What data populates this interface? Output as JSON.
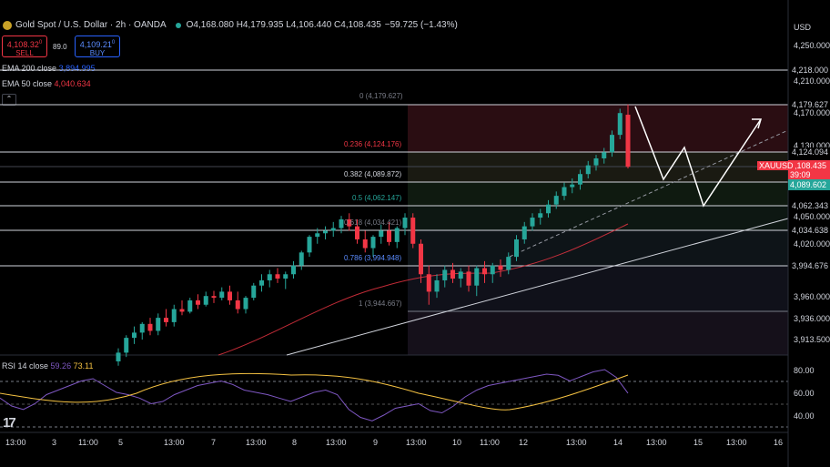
{
  "header": {
    "title": "Gold Spot / U.S. Dollar · 2h · OANDA",
    "o_label": "O",
    "o": "4,168.080",
    "h_label": "H",
    "h": "4,179.935",
    "l_label": "L",
    "l": "4,106.440",
    "c_label": "C",
    "c": "4,108.435",
    "change": "−59.725 (−1.43%)"
  },
  "trade": {
    "sell_price": "4,108.32",
    "sell_sup": "0",
    "sell_label": "SELL",
    "spread": "89.0",
    "buy_price": "4,109.21",
    "buy_sup": "0",
    "buy_label": "BUY"
  },
  "ema200": {
    "label": "EMA 200 close",
    "value": "3,894.995",
    "color": "#2962ff"
  },
  "ema50": {
    "label": "EMA 50 close",
    "value": "4,040.634",
    "color": "#f23645"
  },
  "currency": "USD",
  "price_axis": [
    "4,250.000",
    "4,218.000",
    "4,210.000",
    "4,179.627",
    "4,170.000",
    "4,124.094",
    "4,130.000",
    "4,089.602",
    "4,062.343",
    "4,050.000",
    "4,034.638",
    "4,020.000",
    "3,994.676",
    "3,960.000",
    "3,936.000",
    "3,913.500"
  ],
  "symbol_tag": {
    "symbol": "XAUUSD",
    "price": "4,108.435",
    "countdown": "39:09",
    "color": "#f23645"
  },
  "level_tag": {
    "value": "4,089.602",
    "color": "#26a69a"
  },
  "fib_levels": [
    {
      "ratio": "0",
      "price": "4,179.627",
      "text": "0 (4,179.627)",
      "color": "#787b86"
    },
    {
      "ratio": "0.236",
      "price": "4,124.176",
      "text": "0.236 (4,124.176)",
      "color": "#f23645"
    },
    {
      "ratio": "0.382",
      "price": "4,089.872",
      "text": "0.382 (4,089.872)",
      "color": "#d1d4dc"
    },
    {
      "ratio": "0.5",
      "price": "4,062.147",
      "text": "0.5 (4,062.147)",
      "color": "#26a69a"
    },
    {
      "ratio": "0.618",
      "price": "4,034.421",
      "text": "0.618 (4,034.421)",
      "color": "#787b86"
    },
    {
      "ratio": "0.786",
      "price": "3,994.948",
      "text": "0.786 (3,994.948)",
      "color": "#5b8cff"
    },
    {
      "ratio": "1",
      "price": "3,944.667",
      "text": "1 (3,944.667)",
      "color": "#787b86"
    }
  ],
  "rsi": {
    "label": "RSI 14 close",
    "value1": "59.26",
    "value2": "73.11",
    "axis": [
      "80.00",
      "60.00",
      "40.00"
    ]
  },
  "time_axis": [
    "13:00",
    "3",
    "11:00",
    "5",
    "13:00",
    "7",
    "13:00",
    "8",
    "13:00",
    "9",
    "13:00",
    "10",
    "11:00",
    "12",
    "13:00",
    "14",
    "13:00",
    "15",
    "13:00",
    "16"
  ],
  "chart_data": {
    "type": "candlestick",
    "symbol": "XAUUSD",
    "interval": "2h",
    "ohlc_last": {
      "open": 4168.08,
      "high": 4179.935,
      "low": 4106.44,
      "close": 4108.435
    },
    "candles": [
      [
        3885,
        3900,
        3880,
        3895
      ],
      [
        3895,
        3915,
        3890,
        3912
      ],
      [
        3912,
        3925,
        3905,
        3918
      ],
      [
        3918,
        3930,
        3910,
        3928
      ],
      [
        3928,
        3935,
        3915,
        3920
      ],
      [
        3920,
        3940,
        3915,
        3935
      ],
      [
        3935,
        3945,
        3925,
        3930
      ],
      [
        3930,
        3950,
        3925,
        3945
      ],
      [
        3945,
        3955,
        3938,
        3942
      ],
      [
        3942,
        3958,
        3940,
        3955
      ],
      [
        3955,
        3962,
        3945,
        3950
      ],
      [
        3950,
        3965,
        3948,
        3960
      ],
      [
        3960,
        3966,
        3952,
        3958
      ],
      [
        3958,
        3970,
        3955,
        3965
      ],
      [
        3965,
        3972,
        3950,
        3955
      ],
      [
        3955,
        3965,
        3940,
        3945
      ],
      [
        3945,
        3960,
        3940,
        3958
      ],
      [
        3958,
        3975,
        3955,
        3972
      ],
      [
        3972,
        3985,
        3965,
        3978
      ],
      [
        3978,
        3990,
        3970,
        3985
      ],
      [
        3985,
        3992,
        3975,
        3980
      ],
      [
        3980,
        3988,
        3968,
        3985
      ],
      [
        3985,
        4000,
        3980,
        3995
      ],
      [
        3995,
        4012,
        3990,
        4010
      ],
      [
        4010,
        4030,
        4005,
        4028
      ],
      [
        4028,
        4038,
        4020,
        4032
      ],
      [
        4032,
        4040,
        4025,
        4035
      ],
      [
        4035,
        4045,
        4028,
        4038
      ],
      [
        4038,
        4052,
        4032,
        4048
      ],
      [
        4048,
        4055,
        4035,
        4040
      ],
      [
        4040,
        4048,
        4020,
        4025
      ],
      [
        4025,
        4035,
        4010,
        4015
      ],
      [
        4015,
        4030,
        4005,
        4028
      ],
      [
        4028,
        4042,
        4020,
        4035
      ],
      [
        4035,
        4045,
        4018,
        4022
      ],
      [
        4022,
        4040,
        4015,
        4038
      ],
      [
        4038,
        4055,
        4030,
        4050
      ],
      [
        4050,
        4055,
        4015,
        4020
      ],
      [
        4020,
        4025,
        3975,
        3985
      ],
      [
        3985,
        3995,
        3950,
        3965
      ],
      [
        3965,
        3985,
        3958,
        3978
      ],
      [
        3978,
        3995,
        3970,
        3990
      ],
      [
        3990,
        3998,
        3975,
        3980
      ],
      [
        3980,
        3992,
        3970,
        3988
      ],
      [
        3988,
        3995,
        3965,
        3972
      ],
      [
        3972,
        3995,
        3960,
        3992
      ],
      [
        3992,
        4000,
        3975,
        3985
      ],
      [
        3985,
        3998,
        3975,
        3995
      ],
      [
        3995,
        4002,
        3982,
        3990
      ],
      [
        3990,
        4010,
        3985,
        4005
      ],
      [
        4005,
        4030,
        4000,
        4025
      ],
      [
        4025,
        4045,
        4020,
        4040
      ],
      [
        4040,
        4055,
        4035,
        4050
      ],
      [
        4050,
        4060,
        4042,
        4055
      ],
      [
        4055,
        4070,
        4050,
        4065
      ],
      [
        4065,
        4080,
        4060,
        4075
      ],
      [
        4075,
        4090,
        4070,
        4085
      ],
      [
        4085,
        4095,
        4078,
        4088
      ],
      [
        4088,
        4105,
        4082,
        4100
      ],
      [
        4100,
        4115,
        4095,
        4110
      ],
      [
        4110,
        4122,
        4104,
        4118
      ],
      [
        4118,
        4130,
        4112,
        4125
      ],
      [
        4125,
        4150,
        4120,
        4145
      ],
      [
        4145,
        4175,
        4140,
        4170
      ],
      [
        4168.08,
        4179.935,
        4106.44,
        4108.435
      ]
    ],
    "ema50_end": 4040.634,
    "ema200_end": 3894.995,
    "rsi_values": [
      55,
      48,
      45,
      50,
      58,
      62,
      66,
      70,
      72,
      66,
      60,
      58,
      55,
      50,
      52,
      58,
      62,
      66,
      68,
      70,
      67,
      62,
      60,
      58,
      55,
      52,
      56,
      60,
      62,
      58,
      45,
      38,
      35,
      40,
      46,
      48,
      50,
      44,
      42,
      48,
      56,
      62,
      66,
      68,
      70,
      72,
      74,
      76,
      75,
      70,
      74,
      78,
      80,
      73.11,
      59.26
    ]
  }
}
